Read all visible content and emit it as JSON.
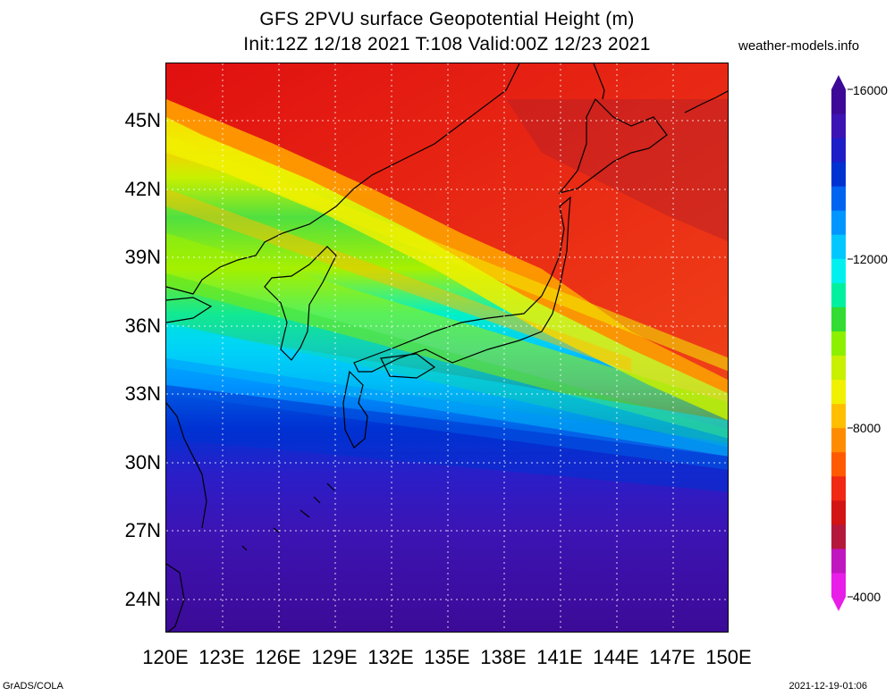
{
  "header": {
    "title_line1": "GFS 2PVU surface Geopotential Height (m)",
    "title_line2": "Init:12Z 12/18 2021 T:108 Valid:00Z 12/23 2021",
    "site": "weather-models.info"
  },
  "map": {
    "lat_ticks": [
      "45N",
      "42N",
      "39N",
      "36N",
      "33N",
      "30N",
      "27N",
      "24N"
    ],
    "lon_ticks": [
      "120E",
      "123E",
      "126E",
      "129E",
      "132E",
      "135E",
      "138E",
      "141E",
      "144E",
      "147E",
      "150E"
    ],
    "extent": {
      "lon_min": 120,
      "lon_max": 150,
      "lat_min": 22.5,
      "lat_max": 47.5
    }
  },
  "colorbar": {
    "labels": [
      "16000",
      "12000",
      "8000",
      "4000"
    ],
    "colors": [
      "#e81ee8",
      "#c016c0",
      "#b4193c",
      "#d21414",
      "#f02814",
      "#ff5a00",
      "#ff8c00",
      "#ffbe00",
      "#f0f000",
      "#c8f000",
      "#8cf000",
      "#32dc32",
      "#00f0a0",
      "#00f0f0",
      "#00c8ff",
      "#0096ff",
      "#0064f0",
      "#0032d2",
      "#1e1ec8",
      "#3c14b4",
      "#3c0a96"
    ]
  },
  "footer": {
    "left": "GrADS/COLA",
    "right": "2021-12-19-01:06"
  }
}
